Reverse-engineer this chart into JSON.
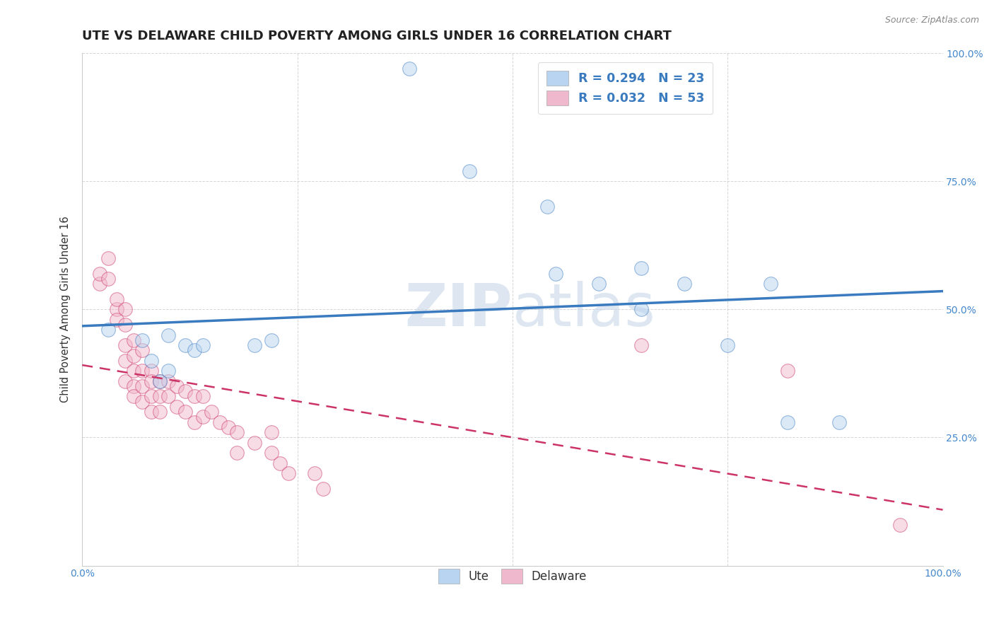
{
  "title": "UTE VS DELAWARE CHILD POVERTY AMONG GIRLS UNDER 16 CORRELATION CHART",
  "source": "Source: ZipAtlas.com",
  "ylabel": "Child Poverty Among Girls Under 16",
  "ute_R": 0.294,
  "ute_N": 23,
  "delaware_R": 0.032,
  "delaware_N": 53,
  "ute_color": "#b8d4f0",
  "delaware_color": "#f0b8cc",
  "trend_ute_color": "#3a7abf",
  "trend_delaware_color": "#cc3366",
  "watermark_zip_color": "#c8d8e8",
  "watermark_atlas_color": "#c8d8e8",
  "ute_x": [
    0.38,
    0.03,
    0.07,
    0.08,
    0.09,
    0.1,
    0.1,
    0.12,
    0.13,
    0.14,
    0.2,
    0.22,
    0.45,
    0.54,
    0.65,
    0.7,
    0.82,
    0.88,
    0.6,
    0.8,
    0.75,
    0.65,
    0.55
  ],
  "ute_y": [
    0.97,
    0.46,
    0.44,
    0.4,
    0.36,
    0.38,
    0.45,
    0.43,
    0.42,
    0.43,
    0.43,
    0.44,
    0.77,
    0.7,
    0.58,
    0.55,
    0.28,
    0.28,
    0.55,
    0.55,
    0.43,
    0.5,
    0.57
  ],
  "del_x": [
    0.02,
    0.02,
    0.03,
    0.03,
    0.04,
    0.04,
    0.04,
    0.05,
    0.05,
    0.05,
    0.05,
    0.05,
    0.06,
    0.06,
    0.06,
    0.06,
    0.06,
    0.07,
    0.07,
    0.07,
    0.07,
    0.08,
    0.08,
    0.08,
    0.08,
    0.09,
    0.09,
    0.09,
    0.1,
    0.1,
    0.11,
    0.11,
    0.12,
    0.12,
    0.13,
    0.13,
    0.14,
    0.14,
    0.15,
    0.16,
    0.17,
    0.18,
    0.18,
    0.2,
    0.22,
    0.22,
    0.23,
    0.24,
    0.27,
    0.28,
    0.65,
    0.82,
    0.95
  ],
  "del_y": [
    0.55,
    0.57,
    0.56,
    0.6,
    0.5,
    0.52,
    0.48,
    0.5,
    0.47,
    0.43,
    0.4,
    0.36,
    0.44,
    0.41,
    0.38,
    0.35,
    0.33,
    0.42,
    0.38,
    0.35,
    0.32,
    0.38,
    0.36,
    0.33,
    0.3,
    0.36,
    0.33,
    0.3,
    0.36,
    0.33,
    0.35,
    0.31,
    0.34,
    0.3,
    0.33,
    0.28,
    0.33,
    0.29,
    0.3,
    0.28,
    0.27,
    0.26,
    0.22,
    0.24,
    0.26,
    0.22,
    0.2,
    0.18,
    0.18,
    0.15,
    0.43,
    0.38,
    0.08
  ],
  "xlim": [
    0.0,
    1.0
  ],
  "ylim": [
    0.0,
    1.0
  ],
  "xticks": [
    0.0,
    0.25,
    0.5,
    0.75,
    1.0
  ],
  "xtick_labels_bottom": [
    "0.0%",
    "",
    "",
    "",
    "100.0%"
  ],
  "yticks": [
    0.0,
    0.25,
    0.5,
    0.75,
    1.0
  ],
  "ytick_labels_right": [
    "",
    "25.0%",
    "50.0%",
    "75.0%",
    "100.0%"
  ],
  "title_fontsize": 13,
  "axis_fontsize": 10.5,
  "tick_fontsize": 10,
  "marker_size": 200,
  "marker_alpha": 0.5,
  "tick_color": "#4488cc",
  "grid_color": "#cccccc"
}
